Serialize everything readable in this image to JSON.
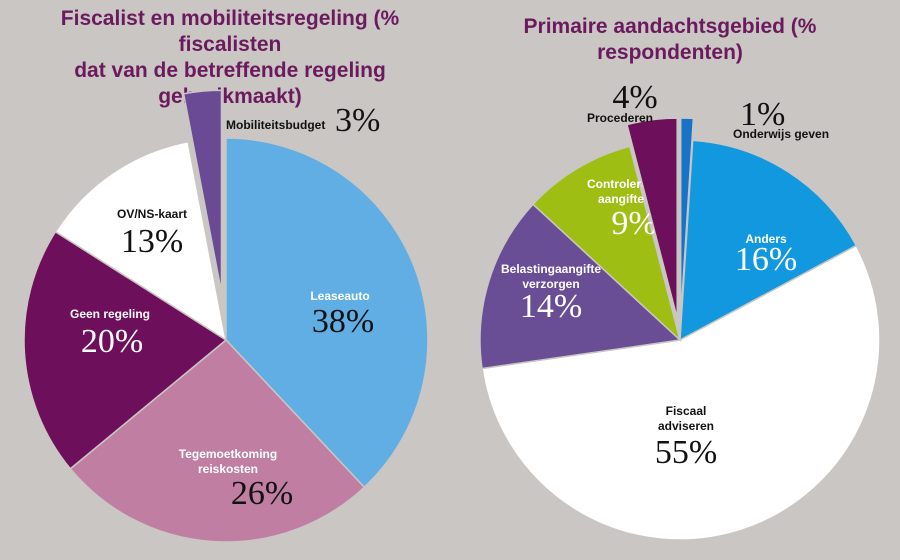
{
  "colors": {
    "background": "#c9c6c3",
    "title": "#6b1a5e"
  },
  "chart_data": [
    {
      "type": "pie",
      "title": "Fiscalist en mobiliteitsregeling (% fiscalisten\ndat van de betreffende regeling gebruikmaakt)",
      "slices": [
        {
          "label": "Leaseauto",
          "value": 38,
          "value_label": "38%",
          "color": "#61aee4",
          "exploded": false
        },
        {
          "label": "Tegemoetkoming\nreiskosten",
          "value": 26,
          "value_label": "26%",
          "color": "#c07fa2",
          "exploded": false
        },
        {
          "label": "Geen regeling",
          "value": 20,
          "value_label": "20%",
          "color": "#6e0f5b",
          "exploded": false
        },
        {
          "label": "OV/NS-kaart",
          "value": 13,
          "value_label": "13%",
          "color": "#ffffff",
          "exploded": false
        },
        {
          "label": "Mobiliteitsbudget",
          "value": 3,
          "value_label": "3%",
          "color": "#6a4a94",
          "exploded": true
        }
      ]
    },
    {
      "type": "pie",
      "title": "Primaire aandachtsgebied (% respondenten)",
      "slices": [
        {
          "label": "Onderwijs geven",
          "value": 1,
          "value_label": "1%",
          "color": "#1773c7",
          "exploded": true
        },
        {
          "label": "Anders",
          "value": 16,
          "value_label": "16%",
          "color": "#1298de",
          "exploded": false
        },
        {
          "label": "Fiscaal\nadviseren",
          "value": 55,
          "value_label": "55%",
          "color": "#ffffff",
          "exploded": false
        },
        {
          "label": "Belastingaangifte\nverzorgen",
          "value": 14,
          "value_label": "14%",
          "color": "#694d95",
          "exploded": false
        },
        {
          "label": "Controleren\naangifte",
          "value": 9,
          "value_label": "9%",
          "color": "#9ebe14",
          "exploded": false
        },
        {
          "label": "Procederen",
          "value": 4,
          "value_label": "4%",
          "color": "#6e0f5b",
          "exploded": true
        }
      ]
    }
  ]
}
